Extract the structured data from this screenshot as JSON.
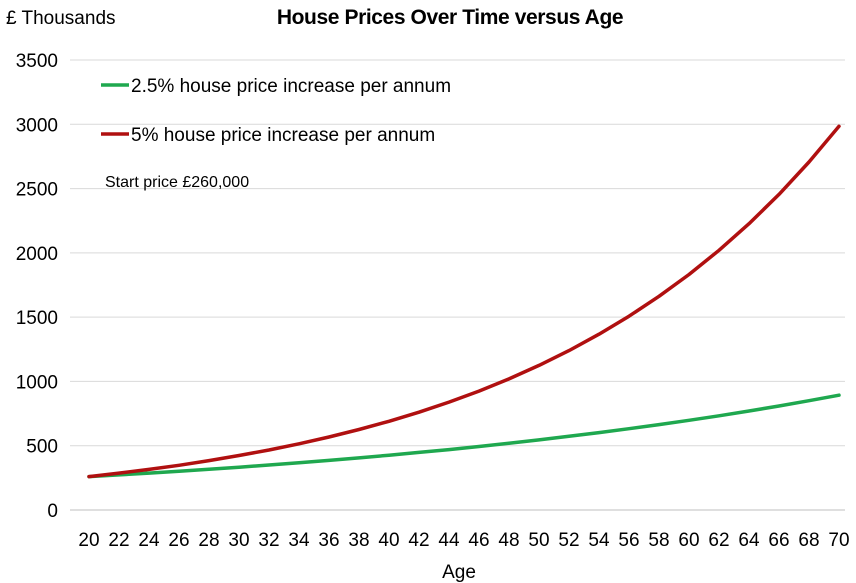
{
  "chart_data": {
    "type": "line",
    "title": "House Prices Over Time versus Age",
    "ylabel": "£ Thousands",
    "xlabel": "Age",
    "annotation": "Start price £260,000",
    "ylim": [
      0,
      3500
    ],
    "yticks": [
      0,
      500,
      1000,
      1500,
      2000,
      2500,
      3000,
      3500
    ],
    "xlim": [
      20,
      70
    ],
    "xticks": [
      20,
      22,
      24,
      26,
      28,
      30,
      32,
      34,
      36,
      38,
      40,
      42,
      44,
      46,
      48,
      50,
      52,
      54,
      56,
      58,
      60,
      62,
      64,
      66,
      68,
      70
    ],
    "grid": true,
    "legend_position": "top-left",
    "x": [
      20,
      22,
      24,
      26,
      28,
      30,
      32,
      34,
      36,
      38,
      40,
      42,
      44,
      46,
      48,
      50,
      52,
      54,
      56,
      58,
      60,
      62,
      64,
      66,
      68,
      70
    ],
    "series": [
      {
        "name": "2.5% house price increase per annum",
        "color": "#1fa84f",
        "values": [
          260,
          273,
          287,
          301,
          317,
          333,
          350,
          367,
          386,
          405,
          426,
          448,
          470,
          494,
          519,
          545,
          573,
          602,
          632,
          664,
          698,
          733,
          770,
          809,
          850,
          893
        ]
      },
      {
        "name": "5% house price increase per annum",
        "color": "#b01010",
        "values": [
          260,
          287,
          316,
          348,
          384,
          424,
          467,
          515,
          568,
          626,
          690,
          761,
          839,
          925,
          1020,
          1125,
          1240,
          1367,
          1507,
          1662,
          1832,
          2020,
          2227,
          2455,
          2707,
          2984
        ]
      }
    ]
  }
}
